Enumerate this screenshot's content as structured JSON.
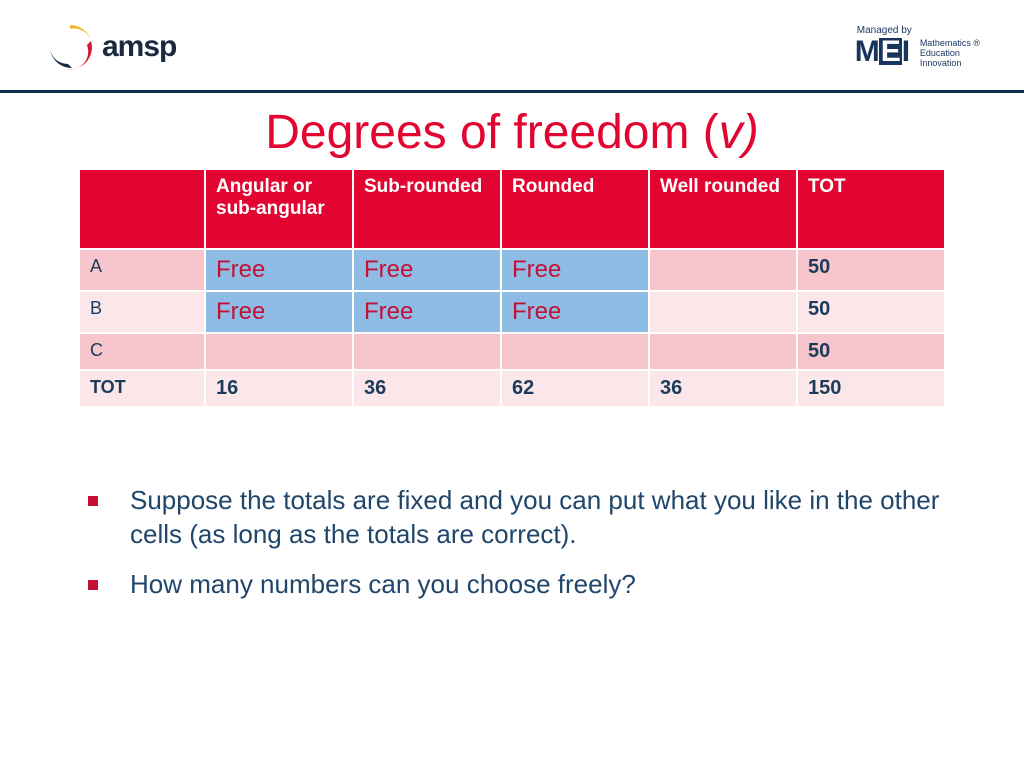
{
  "header": {
    "left_logo_text": "amsp",
    "managed_by": "Managed by",
    "mei": "MEI",
    "mei_sub1": "Mathematics",
    "mei_sub2": "Education",
    "mei_sub3": "Innovation",
    "reg": "®",
    "swirl_colors": {
      "outer": "#f4b233",
      "mid": "#d51736",
      "inner": "#17294a"
    }
  },
  "title_prefix": "Degrees of freedom (",
  "title_var": "v)",
  "table": {
    "columns": [
      "Angular or sub-angular",
      "Sub-rounded",
      "Rounded",
      "Well rounded",
      "TOT"
    ],
    "rows": [
      {
        "label": "A",
        "cells": [
          "Free",
          "Free",
          "Free",
          "",
          "50"
        ],
        "free_mask": [
          true,
          true,
          true,
          false,
          false
        ],
        "band": "a"
      },
      {
        "label": "B",
        "cells": [
          "Free",
          "Free",
          "Free",
          "",
          "50"
        ],
        "free_mask": [
          true,
          true,
          true,
          false,
          false
        ],
        "band": "b"
      },
      {
        "label": "C",
        "cells": [
          "",
          "",
          "",
          "",
          "50"
        ],
        "free_mask": [
          false,
          false,
          false,
          false,
          false
        ],
        "band": "c"
      },
      {
        "label": "TOT",
        "cells": [
          "16",
          "36",
          "62",
          "36",
          "150"
        ],
        "free_mask": [
          false,
          false,
          false,
          false,
          false
        ],
        "band": "tot"
      }
    ],
    "header_bg": "#e20531",
    "header_fg": "#ffffff",
    "free_bg": "#8fbce4",
    "free_fg": "#c41035",
    "band_a_bg": "#f7c5cc",
    "band_b_bg": "#fbe7ea",
    "band_c_bg": "#f7c5cc",
    "band_tot_bg": "#fbe7ea",
    "text_color": "#1c3a5a"
  },
  "bullets": [
    "Suppose the totals are fixed and you can put what you like in the other cells (as long as the totals are correct).",
    "How many numbers can you choose freely?"
  ],
  "colors": {
    "title": "#e20531",
    "divider": "#0e2e52",
    "bullet_marker": "#c41035",
    "body_text": "#21466b",
    "background": "#ffffff"
  },
  "title_fontsize": 48,
  "body_fontsize": 26
}
